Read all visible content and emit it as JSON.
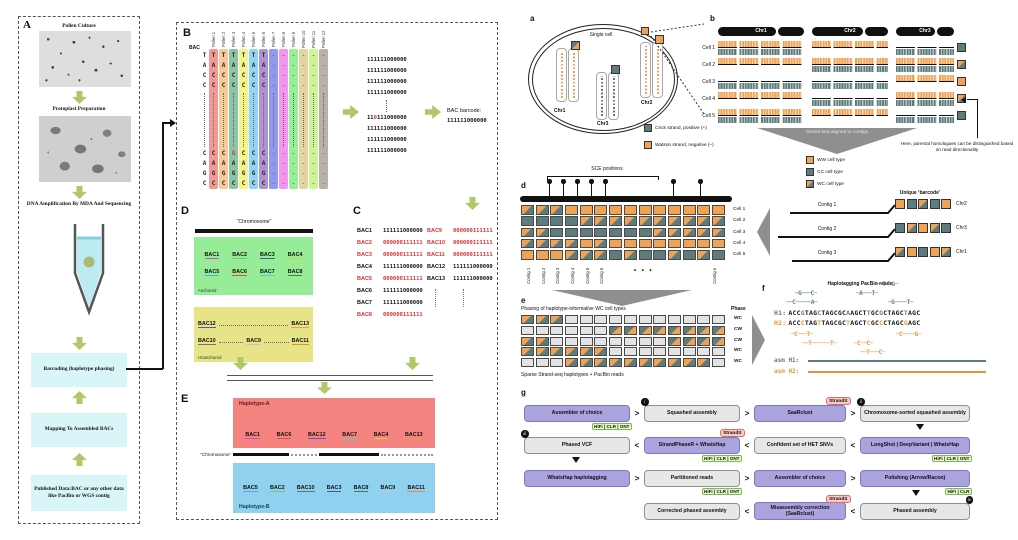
{
  "colors": {
    "watson_orange": "#F0A355",
    "crick_teal": "#5E7B7E",
    "green_arrow": "#AFC868",
    "cyan_box": "#D8F6F7",
    "purple_box": "#A9A3DE",
    "gray_box": "#E7E7E7",
    "strands_badge_bg": "#FBC9C4",
    "tech_badge_bg": "#E5F8CF",
    "red_highlight": "#E03030"
  },
  "left_figure": {
    "panel_a": {
      "label": "A",
      "steps": [
        "Pollen Culture",
        "Protoplast Preparation",
        "DNA Amplification By MDA And Sequencing"
      ],
      "boxes": [
        "Barcoding (haplotype phasing)",
        "Mapping To Assembled BACs",
        "Published Data:BAC or any other data like PacBio or WGS contig"
      ]
    },
    "panel_b": {
      "label": "B",
      "bac_label": "BAC",
      "pollen_labels": [
        "Pollen 1",
        "Pollen 2",
        "Pollen 3",
        "Pollen 4",
        "Pollen 5",
        "Pollen 6",
        "Pollen 7",
        "Pollen 8",
        "Pollen 9",
        "Pollen 10",
        "Pollen 11",
        "Pollen 12"
      ],
      "column_colors": [
        "#F29898",
        "#F8C897",
        "#8AC5A5",
        "#F4F48C",
        "#90D5F2",
        "#AE93CE",
        "#9198EF",
        "#F495F0",
        "#97EF97",
        "#E2D5A4",
        "#CDF598",
        "#B7B1AB"
      ],
      "seq_block1": [
        "T",
        "A",
        "C",
        "C"
      ],
      "seq_block2": [
        "C",
        "A",
        "G",
        "C"
      ],
      "variant": {
        "col": 2,
        "row": 5,
        "letter": "G"
      },
      "barcode_lines": [
        "111111000000",
        "111111000000",
        "111111000000",
        "111111000000",
        "DOTS",
        {
          "text": "110111000000",
          "red_index": 2
        },
        "111111000000",
        "111111000000",
        "111111000000"
      ],
      "bac_barcode_label": "BAC barcode:",
      "bac_barcode_value": "111111000000"
    },
    "panel_c": {
      "label": "C",
      "left_rows": [
        {
          "name": "BAC1",
          "code": "111111000000",
          "red": false
        },
        {
          "name": "BAC2",
          "code": "000000111111",
          "red": true
        },
        {
          "name": "BAC3",
          "code": "000000111111",
          "red": true
        },
        {
          "name": "BAC4",
          "code": "111111000000",
          "red": false
        },
        {
          "name": "BAC5",
          "code": "000000111111",
          "red": true
        },
        {
          "name": "BAC6",
          "code": "111111000000",
          "red": false
        },
        {
          "name": "BAC7",
          "code": "111111000000",
          "red": false
        },
        {
          "name": "BAC8",
          "code": "000000111111",
          "red": true
        }
      ],
      "right_rows": [
        {
          "name": "BAC9",
          "code": "000000111111",
          "red": true
        },
        {
          "name": "BAC10",
          "code": "000000111111",
          "red": true
        },
        {
          "name": "BAC11",
          "code": "000000111111",
          "red": true
        },
        {
          "name": "BAC12",
          "code": "111111000000",
          "red": false
        },
        {
          "name": "BAC13",
          "code": "111111000000",
          "red": false
        }
      ]
    },
    "panel_d": {
      "label": "D",
      "chromosome_label": "“Chromosome”",
      "anchored_label": "Anchored",
      "unanchored_label": "Unanchored",
      "anchored": [
        [
          "BAC1",
          "BAC2",
          "BAC3",
          "BAC4"
        ],
        [
          "BAC5",
          "BAC6",
          "BAC7",
          "BAC8"
        ]
      ],
      "unanchored": [
        [
          "BAC12",
          "...",
          "BAC13"
        ],
        [
          "BAC10",
          "...",
          "BAC9",
          "...",
          "BAC11"
        ]
      ]
    },
    "panel_e": {
      "label": "E",
      "hapA_label": "Haplotype-A",
      "hapB_label": "Haplotype-B",
      "chromosome_label": "“Chromosome”",
      "hapA": [
        "BAC1",
        "BAC6",
        "BAC12",
        "BAC7",
        "BAC4",
        "BAC13"
      ],
      "hapB": [
        "BAC5",
        "BAC2",
        "BAC10",
        "BAC3",
        "BAC8",
        "BAC9",
        "BAC11"
      ]
    },
    "bac_colors": {
      "BAC1": "#D944D9",
      "BAC2": "#6CCB6C",
      "BAC3": "#3C5BA8",
      "BAC4": "#E3C83E",
      "BAC5": "#55A9EE",
      "BAC6": "#DD5248",
      "BAC7": "#49D4D4",
      "BAC8": "#3F7D52",
      "BAC9": "#C4C4C4",
      "BAC10": "#6E6E6E",
      "BAC11": "#E08A3C",
      "BAC12": "#4A5ACA",
      "BAC13": "#E0A347"
    }
  },
  "right_figure": {
    "panel_a": {
      "label": "a",
      "cell_title": "Single cell",
      "chr_labels": [
        "Chr1",
        "Chr3",
        "Chr2"
      ],
      "legend": [
        {
          "type": "C",
          "label": "Crick strand, positive (+)"
        },
        {
          "type": "W",
          "label": "Watson strand, negative (–)"
        }
      ]
    },
    "panel_b": {
      "label": "b",
      "cells": [
        "Cell 1",
        "Cell 2",
        "Cell 3",
        "Cell 4",
        "Cell 5"
      ],
      "chrs": [
        {
          "name": "Chr1",
          "types": [
            "WC",
            "WW",
            "CC",
            "WW",
            "WC"
          ]
        },
        {
          "name": "Chr2",
          "types": [
            "WW",
            "WC",
            "CC",
            "CC",
            "WW"
          ]
        },
        {
          "name": "Chr3",
          "types": [
            "CC",
            "WC",
            "WW",
            "WC",
            "CC"
          ]
        }
      ],
      "end_squares": [
        "C",
        "WC",
        "W",
        "WC",
        "C"
      ],
      "funnel_text": "Strand-seq aligned to contigs",
      "note": "Here, parental homologues can be distinguished based on read directionality"
    },
    "panel_c": {
      "legend": [
        {
          "type": "W",
          "label": "WW cell type"
        },
        {
          "type": "C",
          "label": "CC cell type"
        },
        {
          "type": "WC",
          "label": "WC cell type"
        }
      ],
      "barcode_title": "Unique ‘barcode’",
      "contigs": [
        {
          "name": "Contig 1",
          "barcode": [
            "W",
            "C",
            "WC",
            "C",
            "W"
          ],
          "chr": "Chr2"
        },
        {
          "name": "Contig 2",
          "barcode": [
            "C",
            "WC",
            "W",
            "WC",
            "C"
          ],
          "chr": "Chr3"
        },
        {
          "name": "Contig 3",
          "barcode": [
            "WC",
            "W",
            "C",
            "W",
            "WC"
          ],
          "chr": "Chr1"
        }
      ]
    },
    "panel_d": {
      "label": "d",
      "sce_label": "SCE positions",
      "cells": [
        "Cell 1",
        "Cell 2",
        "Cell 3",
        "Cell 4",
        "Cell 5"
      ],
      "contig_labels": [
        "Contig 1",
        "Contig 2",
        "Contig 3",
        "Contig 4",
        "Contig 5",
        "Contig 6"
      ],
      "contig_n_label": "Contig n",
      "dots": "•  •  •",
      "grid": [
        [
          "WC",
          "WC",
          "WC",
          "W",
          "W",
          "W",
          "W",
          "W",
          "W",
          "W",
          "W",
          "W",
          "W",
          "W"
        ],
        [
          "C",
          "C",
          "C",
          "C",
          "WC",
          "WC",
          "WC",
          "WC",
          "WC",
          "WC",
          "WC",
          "WC",
          "WC",
          "WC"
        ],
        [
          "WC",
          "WC",
          "C",
          "C",
          "C",
          "C",
          "C",
          "C",
          "C",
          "WC",
          "WC",
          "WC",
          "WC",
          "WC"
        ],
        [
          "WC",
          "WC",
          "WC",
          "WC",
          "W",
          "WC",
          "W",
          "W",
          "W",
          "W",
          "W",
          "W",
          "W",
          "W"
        ],
        [
          "W",
          "W",
          "W",
          "WC",
          "WC",
          "WC",
          "C",
          "WC",
          "C",
          "C",
          "WC",
          "C",
          "WC",
          "C"
        ]
      ]
    },
    "panel_e": {
      "label": "e",
      "title": "Phasing of haplotype-informative WC cell types",
      "phase_header": "Phase",
      "phases": [
        "WC",
        "CW",
        "CW",
        "WC",
        "WC"
      ],
      "bottom_label": "Sparse Strand-seq haplotypes + PacBio reads",
      "grid": [
        [
          "WC",
          "WC",
          "WC",
          "E",
          "E",
          "E",
          "E",
          "E",
          "E",
          "E",
          "E",
          "E",
          "E",
          "E"
        ],
        [
          "E",
          "E",
          "E",
          "E",
          "E",
          "E",
          "CW",
          "CW",
          "CW",
          "CW",
          "CW",
          "CW",
          "CW",
          "CW"
        ],
        [
          "WC",
          "WC",
          "E",
          "E",
          "E",
          "E",
          "E",
          "E",
          "E",
          "E",
          "CW",
          "CW",
          "CW",
          "CW"
        ],
        [
          "WC",
          "WC",
          "WC",
          "WC",
          "WC",
          "WC",
          "E",
          "E",
          "E",
          "E",
          "E",
          "E",
          "E",
          "E"
        ],
        [
          "E",
          "E",
          "E",
          "WC",
          "WC",
          "WC",
          "WC",
          "WC",
          "WC",
          "WC",
          "WC",
          "WC",
          "WC",
          "E"
        ]
      ]
    },
    "panel_f": {
      "label": "f",
      "title": "Haplotagging PacBio reads",
      "h1_label": "H1:",
      "h2_label": "H2:",
      "h1_seq": "ACCGTAGCTAGCGCAAGCTTGCGCTAGCTAGC",
      "h2_seq": "ACCCTAGTTAGCGCTAGCTCGCCCTAGCGAGC",
      "variant_positions": [
        3,
        7,
        14,
        19,
        22,
        28
      ],
      "crick_reads": [
        "─G───C─",
        "──C─────A─",
        "──T──G─",
        "─A───T─",
        "─G────T─"
      ],
      "watson_reads": [
        "─C───T─",
        "──T──────T─",
        "─C──C─",
        "─C────G─",
        "──T───C─"
      ],
      "asm_h1_label": "asm H1:",
      "asm_h2_label": "asm H2:"
    },
    "panel_g": {
      "label": "g",
      "rows": [
        {
          "dir": "right",
          "boxes": [
            {
              "label": "Assembler of choice",
              "style": "purple",
              "badge": "HiFi | CLR | ONT"
            },
            {
              "label": "Squashed assembly",
              "style": "gray",
              "num": "i"
            },
            {
              "label": "SaaRclust",
              "style": "purple",
              "tag": "StrandS"
            },
            {
              "label": "Chromosome-sorted squashed assembly",
              "style": "gray",
              "num": "ii"
            }
          ]
        },
        {
          "dir": "left",
          "boxes": [
            {
              "label": "Phased VCF",
              "style": "gray",
              "num": "iii"
            },
            {
              "label": "StrandPhaseR + WhatsHap",
              "style": "purple",
              "tag": "StrandS",
              "badge": "HiFi | CLR | ONT"
            },
            {
              "label": "Confident set of HET SNVs",
              "style": "gray"
            },
            {
              "label": "LongShot | DeepVariant | WhatsHap",
              "style": "purple",
              "badge": "HiFi | CLR | ONT"
            }
          ]
        },
        {
          "dir": "right",
          "boxes": [
            {
              "label": "WhatsHap haplotagging",
              "style": "purple"
            },
            {
              "label": "Partitioned reads",
              "style": "gray",
              "badge": "HiFi | CLR | ONT"
            },
            {
              "label": "Assembler of choice",
              "style": "purple"
            },
            {
              "label": "Polishing (Arrow/Racon)",
              "style": "purple",
              "badge": "HiFi | CLR"
            }
          ]
        },
        {
          "dir": "left",
          "boxes": [
            null,
            {
              "label": "Corrected phased assembly",
              "style": "gray"
            },
            {
              "label": "Misassembly correction (SaaRclust)",
              "style": "purple",
              "tag": "StrandS"
            },
            {
              "label": "Phased assembly",
              "style": "gray",
              "num": "iv",
              "numpos": "tr"
            }
          ]
        }
      ]
    }
  }
}
